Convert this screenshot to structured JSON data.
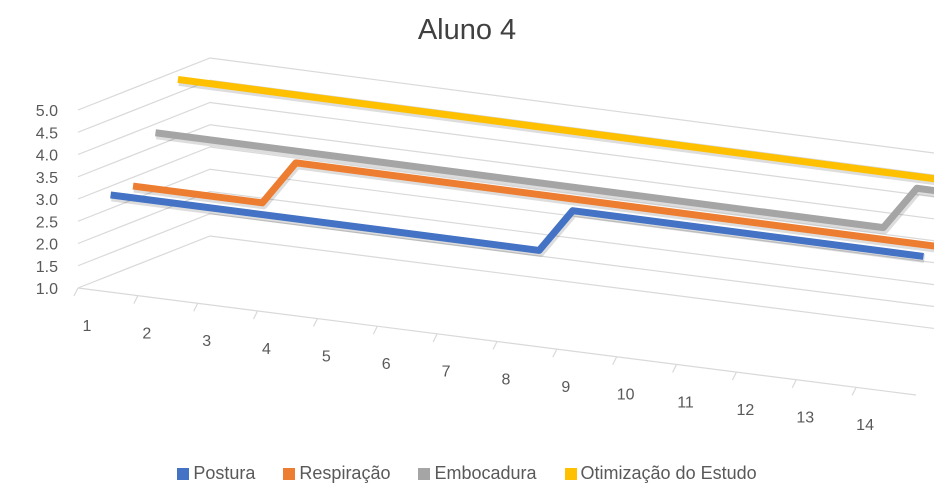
{
  "chart_data": {
    "type": "line",
    "subtype": "3d-line",
    "title": "Aluno 4",
    "categories": [
      "1",
      "2",
      "3",
      "4",
      "5",
      "6",
      "7",
      "8",
      "9",
      "10",
      "11",
      "12",
      "13",
      "14"
    ],
    "y_ticks": [
      "1.0",
      "1.5",
      "2.0",
      "2.5",
      "3.0",
      "3.5",
      "4.0",
      "4.5",
      "5.0"
    ],
    "ylim": [
      1.0,
      5.0
    ],
    "grid": true,
    "legend_position": "bottom",
    "series": [
      {
        "name": "Postura",
        "color": "#4472C4",
        "values": [
          3,
          3,
          3,
          3,
          3,
          3,
          3,
          3,
          4,
          4,
          4,
          4,
          4,
          4
        ]
      },
      {
        "name": "Respiração",
        "color": "#ED7D31",
        "values": [
          3,
          3,
          3,
          4,
          4,
          4,
          4,
          4,
          4,
          4,
          4,
          4,
          4,
          4
        ]
      },
      {
        "name": "Embocadura",
        "color": "#A5A5A5",
        "values": [
          4,
          4,
          4,
          4,
          4,
          4,
          4,
          4,
          4,
          4,
          4,
          4,
          4,
          5
        ]
      },
      {
        "name": "Otimização do Estudo",
        "color": "#FFC000",
        "values": [
          5,
          5,
          5,
          5,
          5,
          5,
          5,
          5,
          5,
          5,
          5,
          5,
          5,
          5
        ]
      }
    ]
  }
}
